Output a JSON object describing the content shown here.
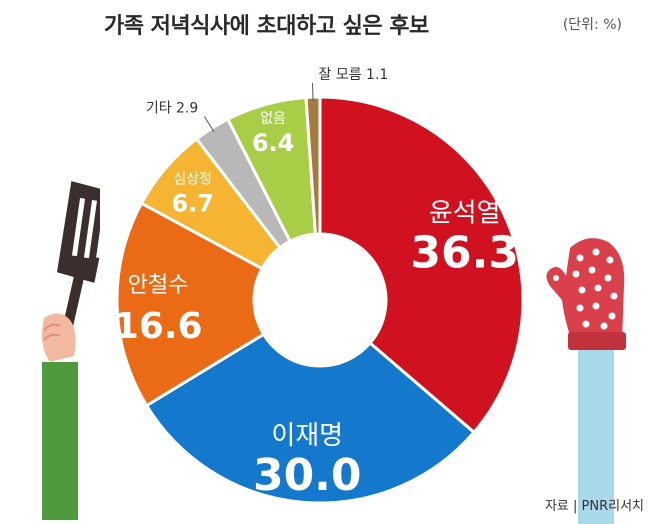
{
  "title": "가족 저녁식사에 초대하고 싶은 후보",
  "unit_note": "(단위: %)",
  "source": "자료 | PNR리서치",
  "chart_data": {
    "type": "pie",
    "style": "donut",
    "slices": [
      {
        "label": "윤석열",
        "value": 36.3,
        "color": "#d0111f"
      },
      {
        "label": "이재명",
        "value": 30.0,
        "color": "#1479cc"
      },
      {
        "label": "안철수",
        "value": 16.6,
        "color": "#ea6a16"
      },
      {
        "label": "심상정",
        "value": 6.7,
        "color": "#f6b433"
      },
      {
        "label": "기타",
        "value": 2.9,
        "color": "#b8b8b8"
      },
      {
        "label": "없음",
        "value": 6.4,
        "color": "#a8cd47"
      },
      {
        "label": "잘 모름",
        "value": 1.1,
        "color": "#a57a3f"
      }
    ]
  }
}
